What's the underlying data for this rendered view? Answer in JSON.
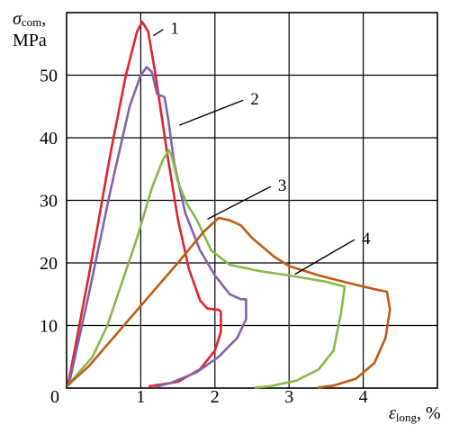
{
  "chart_data": {
    "type": "line",
    "title": "",
    "ylabel": {
      "symbol": "σ",
      "subscript": "com",
      "suffix": ",",
      "unit": "MPa"
    },
    "xlabel": {
      "symbol": "ε",
      "subscript": "long",
      "suffix": ", %"
    },
    "xlim": [
      0,
      5
    ],
    "ylim": [
      0,
      60
    ],
    "xticks": [
      {
        "value": 0,
        "label": "0"
      },
      {
        "value": 1,
        "label": "1"
      },
      {
        "value": 2,
        "label": "2"
      },
      {
        "value": 3,
        "label": "3"
      },
      {
        "value": 4,
        "label": "4"
      }
    ],
    "yticks": [
      {
        "value": 10,
        "label": "10"
      },
      {
        "value": 20,
        "label": "20"
      },
      {
        "value": 30,
        "label": "30"
      },
      {
        "value": 40,
        "label": "40"
      },
      {
        "value": 50,
        "label": "50"
      }
    ],
    "grid": true,
    "legend": "none",
    "series": [
      {
        "label": "1",
        "color": "#e0232c",
        "points": [
          [
            0.02,
            0.5
          ],
          [
            0.3,
            18
          ],
          [
            0.6,
            38
          ],
          [
            0.8,
            50
          ],
          [
            0.95,
            57
          ],
          [
            1.02,
            58.5
          ],
          [
            1.1,
            57
          ],
          [
            1.2,
            50
          ],
          [
            1.35,
            38
          ],
          [
            1.5,
            27
          ],
          [
            1.65,
            19
          ],
          [
            1.8,
            14
          ],
          [
            1.9,
            12.7
          ],
          [
            2.05,
            12.5
          ],
          [
            2.08,
            12.2
          ],
          [
            2.08,
            9.0
          ],
          [
            2.0,
            6.0
          ],
          [
            1.8,
            3.0
          ],
          [
            1.5,
            1.0
          ],
          [
            1.12,
            0.3
          ]
        ],
        "callout": {
          "label_at": [
            1.4,
            57.6
          ],
          "line_to": [
            1.17,
            56.3
          ]
        }
      },
      {
        "label": "2",
        "color": "#8062ad",
        "points": [
          [
            0.03,
            0.5
          ],
          [
            0.3,
            15
          ],
          [
            0.6,
            32
          ],
          [
            0.85,
            45
          ],
          [
            1.0,
            50
          ],
          [
            1.08,
            51.3
          ],
          [
            1.15,
            50.5
          ],
          [
            1.22,
            47
          ],
          [
            1.32,
            46.5
          ],
          [
            1.37,
            43
          ],
          [
            1.45,
            36
          ],
          [
            1.6,
            28
          ],
          [
            1.8,
            22
          ],
          [
            2.0,
            18
          ],
          [
            2.2,
            15
          ],
          [
            2.35,
            14.2
          ],
          [
            2.42,
            14.2
          ],
          [
            2.42,
            11
          ],
          [
            2.3,
            8
          ],
          [
            2.05,
            5
          ],
          [
            1.75,
            2.5
          ],
          [
            1.4,
            0.8
          ],
          [
            1.2,
            0.2
          ]
        ],
        "callout": {
          "label_at": [
            2.48,
            46.3
          ],
          "line_to": [
            1.52,
            42.0
          ]
        }
      },
      {
        "label": "3",
        "color": "#8ab84a",
        "points": [
          [
            0.02,
            0.5
          ],
          [
            0.35,
            5
          ],
          [
            0.55,
            10
          ],
          [
            0.75,
            17
          ],
          [
            0.95,
            24
          ],
          [
            1.15,
            32
          ],
          [
            1.3,
            36.5
          ],
          [
            1.38,
            38
          ],
          [
            1.42,
            37
          ],
          [
            1.5,
            33
          ],
          [
            1.62,
            29.5
          ],
          [
            1.75,
            27
          ],
          [
            1.95,
            22
          ],
          [
            2.2,
            19.7
          ],
          [
            2.6,
            18.7
          ],
          [
            3.0,
            18.0
          ],
          [
            3.5,
            17.0
          ],
          [
            3.75,
            16.2
          ],
          [
            3.7,
            12
          ],
          [
            3.6,
            6
          ],
          [
            3.4,
            3
          ],
          [
            3.1,
            1.2
          ],
          [
            2.75,
            0.3
          ],
          [
            2.55,
            0.1
          ]
        ],
        "callout": {
          "label_at": [
            2.85,
            32.5
          ],
          "line_to": [
            1.9,
            27.0
          ]
        }
      },
      {
        "label": "4",
        "color": "#bf5a16",
        "points": [
          [
            0.02,
            0.5
          ],
          [
            0.3,
            3.5
          ],
          [
            0.7,
            9
          ],
          [
            1.1,
            14.5
          ],
          [
            1.5,
            20
          ],
          [
            1.85,
            25
          ],
          [
            2.05,
            27.2
          ],
          [
            2.2,
            26.8
          ],
          [
            2.35,
            26.0
          ],
          [
            2.5,
            24
          ],
          [
            2.8,
            21
          ],
          [
            3.0,
            19.5
          ],
          [
            3.4,
            18.0
          ],
          [
            3.9,
            16.5
          ],
          [
            4.15,
            15.8
          ],
          [
            4.32,
            15.4
          ],
          [
            4.36,
            12.5
          ],
          [
            4.3,
            8
          ],
          [
            4.15,
            4
          ],
          [
            3.9,
            1.5
          ],
          [
            3.6,
            0.4
          ],
          [
            3.4,
            0.1
          ]
        ],
        "callout": {
          "label_at": [
            3.98,
            24.0
          ],
          "line_to": [
            3.08,
            18.2
          ]
        }
      }
    ]
  }
}
